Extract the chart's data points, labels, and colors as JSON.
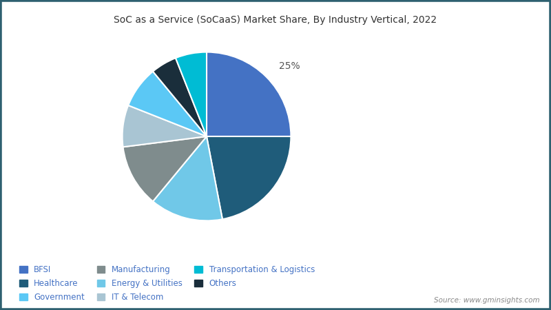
{
  "title": "SoC as a Service (SoCaaS) Market Share, By Industry Vertical, 2022",
  "labels": [
    "BFSI",
    "Healthcare",
    "Energy & Utilities",
    "Manufacturing",
    "IT & Telecom",
    "Government",
    "Others",
    "Transportation & Logistics"
  ],
  "values": [
    25,
    22,
    14,
    12,
    8,
    8,
    5,
    6
  ],
  "colors": [
    "#4472c4",
    "#1f5c7a",
    "#70c8e8",
    "#7f8c8d",
    "#a9c5d3",
    "#5bc8f5",
    "#1a2e3b",
    "#00bcd4"
  ],
  "legend_labels": [
    "BFSI",
    "Healthcare",
    "Government",
    "Manufacturing",
    "Energy & Utilities",
    "IT & Telecom",
    "Transportation & Logistics",
    "Others"
  ],
  "legend_colors": [
    "#4472c4",
    "#1f5c7a",
    "#5bc8f5",
    "#7f8c8d",
    "#70c8e8",
    "#a9c5d3",
    "#00bcd4",
    "#1a2e3b"
  ],
  "label_25_pct": "25%",
  "source_text": "Source: www.gminsights.com",
  "background_color": "#ffffff",
  "border_color": "#2e6070",
  "title_color": "#333333",
  "legend_text_color": "#4472c4"
}
